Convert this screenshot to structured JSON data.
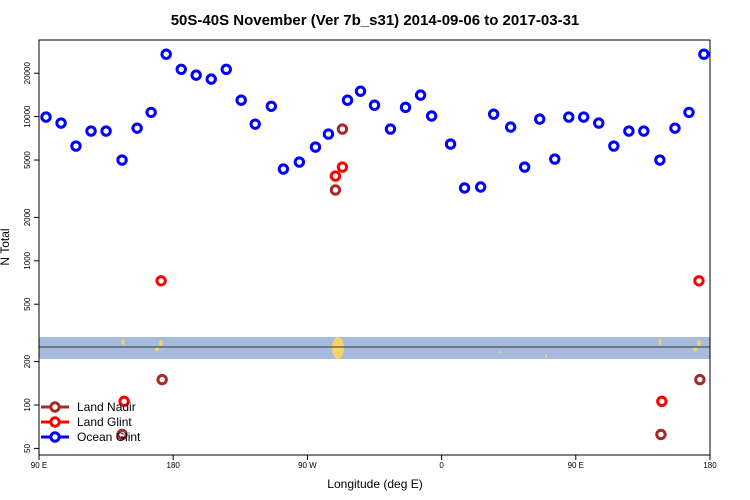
{
  "chart_data": {
    "type": "scatter",
    "title": "50S-40S November (Ver 7b_s31)   2014-09-06 to 2017-03-31",
    "x_label": "Longitude (deg E)",
    "y_label": "N Total",
    "log_y": true,
    "legend": "bottomleft",
    "xlim": [
      90,
      540
    ],
    "xticks": [
      {
        "value": 90,
        "label": "90 E"
      },
      {
        "value": 180,
        "label": "180"
      },
      {
        "value": 270,
        "label": "90 W"
      },
      {
        "value": 360,
        "label": "0"
      },
      {
        "value": 450,
        "label": "90 E"
      },
      {
        "value": 540,
        "label": "180"
      }
    ],
    "ylim": [
      45,
      34000
    ],
    "yticks": [
      50,
      100,
      200,
      500,
      1000,
      2000,
      5000,
      10000,
      20000
    ],
    "series": [
      {
        "name": "Land Nadir",
        "color": "#a52a2a",
        "x": [
          145.7,
          172.6,
          288.8,
          293.5,
          507.1,
          533.2
        ],
        "values": [
          62.5,
          150,
          3100,
          8200,
          62.5,
          150
        ]
      },
      {
        "name": "Land Glint",
        "color": "#ff0000",
        "x": [
          147.1,
          171.9,
          288.8,
          293.5,
          507.7,
          532.6
        ],
        "values": [
          106,
          727,
          3870,
          4470,
          106,
          727
        ]
      },
      {
        "name": "Ocean Glint",
        "color": "#0000ff",
        "x": [
          94.7,
          104.8,
          114.8,
          124.9,
          135.0,
          145.7,
          155.8,
          165.2,
          175.3,
          185.4,
          195.4,
          205.5,
          215.6,
          225.6,
          235.0,
          245.8,
          253.9,
          264.6,
          275.4,
          284.1,
          296.9,
          305.6,
          315.0,
          325.7,
          335.8,
          345.9,
          353.3,
          366.0,
          375.4,
          386.2,
          394.9,
          406.3,
          415.7,
          425.8,
          435.9,
          445.3,
          455.3,
          465.4,
          475.5,
          485.6,
          495.6,
          506.4,
          516.5,
          525.9,
          535.9
        ],
        "values": [
          9930,
          9020,
          6250,
          7940,
          7940,
          5000,
          8320,
          10700,
          27100,
          21300,
          19400,
          18200,
          21300,
          13000,
          8870,
          11800,
          4330,
          4840,
          6150,
          7570,
          13000,
          15000,
          12000,
          8200,
          11600,
          14100,
          10100,
          6450,
          3200,
          3250,
          10400,
          8460,
          4470,
          9610,
          5080,
          9930,
          9930,
          9020,
          6250,
          7940,
          7940,
          5000,
          8320,
          10700,
          27100
        ]
      }
    ]
  }
}
